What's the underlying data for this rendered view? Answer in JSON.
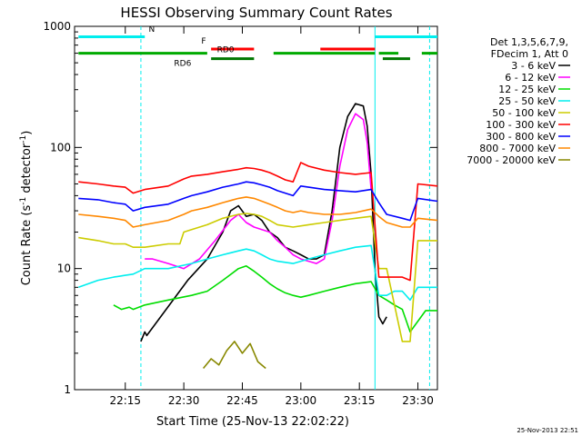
{
  "chart_data": {
    "type": "line",
    "title": "HESSI Observing Summary Count Rates",
    "xlabel": "Start Time (25-Nov-13 22:02:22)",
    "ylabel_main": "Count Rate (s",
    "ylabel_sup1": "-1",
    "ylabel_mid": " detector",
    "ylabel_sup2": "-1",
    "ylabel_end": ")",
    "y_scale": "log",
    "ylim": [
      1,
      1000
    ],
    "xlim_minutes": [
      0,
      93
    ],
    "x_ticks": [
      {
        "t": 13,
        "label": "22:15"
      },
      {
        "t": 28,
        "label": "22:30"
      },
      {
        "t": 43,
        "label": "22:45"
      },
      {
        "t": 58,
        "label": "23:00"
      },
      {
        "t": 73,
        "label": "23:15"
      },
      {
        "t": 88,
        "label": "23:30"
      }
    ],
    "y_ticks": [
      {
        "v": 1,
        "label": "1"
      },
      {
        "v": 10,
        "label": "10"
      },
      {
        "v": 100,
        "label": "100"
      },
      {
        "v": 1000,
        "label": "1000"
      }
    ],
    "legend_header": [
      "Det 1,3,5,6,7,9,",
      "FDecim 1, Att 0"
    ],
    "legend_position": "right",
    "series": [
      {
        "name": "3 - 6 keV",
        "color": "#000000",
        "points": [
          [
            17,
            2.5
          ],
          [
            18,
            3
          ],
          [
            18.5,
            2.8
          ],
          [
            29,
            8
          ],
          [
            34,
            12
          ],
          [
            38,
            20
          ],
          [
            40,
            30
          ],
          [
            42,
            33
          ],
          [
            44,
            27
          ],
          [
            46,
            28
          ],
          [
            48,
            25
          ],
          [
            50,
            20
          ],
          [
            52,
            18
          ],
          [
            54,
            15
          ],
          [
            56,
            14
          ],
          [
            58,
            13
          ],
          [
            60,
            12
          ],
          [
            62,
            12
          ],
          [
            64,
            13
          ],
          [
            66,
            30
          ],
          [
            68,
            100
          ],
          [
            70,
            180
          ],
          [
            72,
            230
          ],
          [
            74,
            220
          ],
          [
            75,
            150
          ],
          [
            76,
            60
          ],
          [
            77,
            10
          ],
          [
            78,
            4
          ],
          [
            79,
            3.5
          ],
          [
            80,
            4
          ]
        ]
      },
      {
        "name": "6 - 12 keV",
        "color": "#ff00ff",
        "points": [
          [
            18,
            12
          ],
          [
            20,
            12
          ],
          [
            24,
            11
          ],
          [
            28,
            10
          ],
          [
            32,
            12
          ],
          [
            36,
            17
          ],
          [
            40,
            25
          ],
          [
            42,
            28
          ],
          [
            44,
            24
          ],
          [
            46,
            22
          ],
          [
            48,
            21
          ],
          [
            50,
            20
          ],
          [
            52,
            17
          ],
          [
            54,
            15
          ],
          [
            56,
            13
          ],
          [
            58,
            12
          ],
          [
            60,
            11.5
          ],
          [
            62,
            11
          ],
          [
            64,
            12
          ],
          [
            66,
            25
          ],
          [
            68,
            70
          ],
          [
            70,
            140
          ],
          [
            72,
            190
          ],
          [
            74,
            170
          ],
          [
            75,
            110
          ],
          [
            76,
            45
          ]
        ]
      },
      {
        "name": "12 - 25 keV",
        "color": "#00dd00",
        "points": [
          [
            10,
            5
          ],
          [
            12,
            4.6
          ],
          [
            14,
            4.8
          ],
          [
            15,
            4.6
          ],
          [
            18,
            5
          ],
          [
            24,
            5.5
          ],
          [
            30,
            6
          ],
          [
            34,
            6.5
          ],
          [
            38,
            8
          ],
          [
            42,
            10
          ],
          [
            44,
            10.5
          ],
          [
            46,
            9.5
          ],
          [
            48,
            8.5
          ],
          [
            50,
            7.5
          ],
          [
            52,
            6.8
          ],
          [
            54,
            6.3
          ],
          [
            56,
            6
          ],
          [
            58,
            5.8
          ],
          [
            60,
            6
          ],
          [
            64,
            6.5
          ],
          [
            68,
            7
          ],
          [
            72,
            7.5
          ],
          [
            76,
            7.8
          ],
          [
            78,
            6
          ],
          [
            80,
            5.5
          ],
          [
            82,
            5
          ],
          [
            84,
            4.6
          ],
          [
            86,
            3
          ],
          [
            90,
            4.5
          ],
          [
            93,
            4.5
          ]
        ]
      },
      {
        "name": "25 - 50 keV",
        "color": "#00eeee",
        "points": [
          [
            1,
            7
          ],
          [
            6,
            8
          ],
          [
            10,
            8.5
          ],
          [
            13,
            8.8
          ],
          [
            15,
            9
          ],
          [
            18,
            10
          ],
          [
            24,
            10
          ],
          [
            30,
            11
          ],
          [
            34,
            12
          ],
          [
            38,
            13
          ],
          [
            42,
            14
          ],
          [
            44,
            14.5
          ],
          [
            46,
            14
          ],
          [
            48,
            13
          ],
          [
            50,
            12
          ],
          [
            52,
            11.5
          ],
          [
            56,
            11
          ],
          [
            60,
            12
          ],
          [
            64,
            13
          ],
          [
            68,
            14
          ],
          [
            72,
            15
          ],
          [
            76,
            15.5
          ],
          [
            78,
            6
          ],
          [
            80,
            6
          ],
          [
            82,
            6.5
          ],
          [
            84,
            6.5
          ],
          [
            86,
            5.5
          ],
          [
            88,
            7
          ],
          [
            93,
            7
          ]
        ]
      },
      {
        "name": "50 - 100 keV",
        "color": "#cccc00",
        "points": [
          [
            1,
            18
          ],
          [
            6,
            17
          ],
          [
            10,
            16
          ],
          [
            13,
            16
          ],
          [
            15,
            15
          ],
          [
            18,
            15
          ],
          [
            24,
            16
          ],
          [
            27,
            16
          ],
          [
            28,
            20
          ],
          [
            30,
            21
          ],
          [
            34,
            23
          ],
          [
            38,
            26
          ],
          [
            42,
            28
          ],
          [
            44,
            28.5
          ],
          [
            46,
            28
          ],
          [
            48,
            27
          ],
          [
            50,
            25
          ],
          [
            52,
            23
          ],
          [
            56,
            22
          ],
          [
            60,
            23
          ],
          [
            64,
            24
          ],
          [
            68,
            25
          ],
          [
            72,
            26
          ],
          [
            76,
            27
          ],
          [
            78,
            10
          ],
          [
            80,
            10
          ],
          [
            84,
            2.5
          ],
          [
            86,
            2.5
          ],
          [
            88,
            17
          ],
          [
            93,
            17
          ]
        ]
      },
      {
        "name": "100 - 300 keV",
        "color": "#ff0000",
        "points": [
          [
            1,
            52
          ],
          [
            6,
            50
          ],
          [
            10,
            48
          ],
          [
            13,
            47
          ],
          [
            15,
            42
          ],
          [
            18,
            45
          ],
          [
            24,
            48
          ],
          [
            28,
            55
          ],
          [
            30,
            58
          ],
          [
            34,
            60
          ],
          [
            38,
            63
          ],
          [
            42,
            66
          ],
          [
            44,
            68
          ],
          [
            46,
            67
          ],
          [
            48,
            65
          ],
          [
            50,
            62
          ],
          [
            52,
            58
          ],
          [
            54,
            54
          ],
          [
            56,
            52
          ],
          [
            58,
            75
          ],
          [
            60,
            70
          ],
          [
            64,
            65
          ],
          [
            68,
            62
          ],
          [
            72,
            60
          ],
          [
            76,
            62
          ],
          [
            78,
            8.5
          ],
          [
            80,
            8.5
          ],
          [
            84,
            8.5
          ],
          [
            86,
            8
          ],
          [
            88,
            50
          ],
          [
            93,
            48
          ]
        ]
      },
      {
        "name": "300 - 800 keV",
        "color": "#0000ff",
        "points": [
          [
            1,
            38
          ],
          [
            6,
            37
          ],
          [
            10,
            35
          ],
          [
            13,
            34
          ],
          [
            15,
            30
          ],
          [
            18,
            32
          ],
          [
            24,
            34
          ],
          [
            28,
            38
          ],
          [
            30,
            40
          ],
          [
            34,
            43
          ],
          [
            38,
            47
          ],
          [
            42,
            50
          ],
          [
            44,
            52
          ],
          [
            46,
            51
          ],
          [
            48,
            49
          ],
          [
            50,
            47
          ],
          [
            52,
            44
          ],
          [
            54,
            42
          ],
          [
            56,
            40
          ],
          [
            58,
            48
          ],
          [
            60,
            47
          ],
          [
            64,
            45
          ],
          [
            68,
            44
          ],
          [
            72,
            43
          ],
          [
            76,
            45
          ],
          [
            78,
            35
          ],
          [
            80,
            28
          ],
          [
            84,
            26
          ],
          [
            86,
            25
          ],
          [
            88,
            38
          ],
          [
            93,
            36
          ]
        ]
      },
      {
        "name": "800 - 7000 keV",
        "color": "#ff8800",
        "points": [
          [
            1,
            28
          ],
          [
            6,
            27
          ],
          [
            10,
            26
          ],
          [
            13,
            25
          ],
          [
            15,
            22
          ],
          [
            18,
            23
          ],
          [
            24,
            25
          ],
          [
            28,
            28
          ],
          [
            30,
            30
          ],
          [
            34,
            32
          ],
          [
            38,
            35
          ],
          [
            42,
            38
          ],
          [
            44,
            39
          ],
          [
            46,
            38
          ],
          [
            48,
            36
          ],
          [
            50,
            34
          ],
          [
            52,
            32
          ],
          [
            54,
            30
          ],
          [
            56,
            29
          ],
          [
            58,
            30
          ],
          [
            60,
            29
          ],
          [
            64,
            28
          ],
          [
            68,
            28
          ],
          [
            72,
            29
          ],
          [
            76,
            31
          ],
          [
            78,
            27
          ],
          [
            80,
            24
          ],
          [
            84,
            22
          ],
          [
            86,
            22
          ],
          [
            88,
            26
          ],
          [
            93,
            25
          ]
        ]
      },
      {
        "name": "7000 - 20000 keV",
        "color": "#888800",
        "points": [
          [
            33,
            1.5
          ],
          [
            35,
            1.8
          ],
          [
            37,
            1.6
          ],
          [
            39,
            2.1
          ],
          [
            41,
            2.5
          ],
          [
            43,
            2.0
          ],
          [
            45,
            2.4
          ],
          [
            47,
            1.7
          ],
          [
            49,
            1.5
          ]
        ]
      }
    ],
    "attenuator_bars": [
      {
        "label": "N",
        "color": "#00eeee",
        "y_value": 820,
        "segments": [
          [
            1,
            18
          ],
          [
            77,
            93
          ]
        ],
        "label_t": 19,
        "label_y": 900
      },
      {
        "label": "F",
        "color": "#ff0000",
        "y_value": 650,
        "segments": [
          [
            35,
            46
          ],
          [
            63,
            77
          ]
        ],
        "label_t": 32.5,
        "label_y": 720
      },
      {
        "label": "RD0",
        "color": "#00aa00",
        "y_value": 600,
        "segments": [
          [
            1,
            34
          ],
          [
            51,
            77
          ],
          [
            78,
            83
          ],
          [
            89,
            93
          ]
        ],
        "label_t": 36.5,
        "label_y": 610
      },
      {
        "label": "RD6",
        "color": "#007700",
        "y_value": 540,
        "segments": [
          [
            35,
            46
          ],
          [
            79,
            86
          ]
        ],
        "label_t": 25.5,
        "label_y": 470
      }
    ],
    "vertical_markers": [
      {
        "t": 17,
        "style": "dashed",
        "color": "#00eeee"
      },
      {
        "t": 77,
        "style": "solid",
        "color": "#00eeee"
      },
      {
        "t": 91,
        "style": "dashed",
        "color": "#00eeee"
      }
    ]
  },
  "footer_timestamp": "25-Nov-2013 22:51"
}
